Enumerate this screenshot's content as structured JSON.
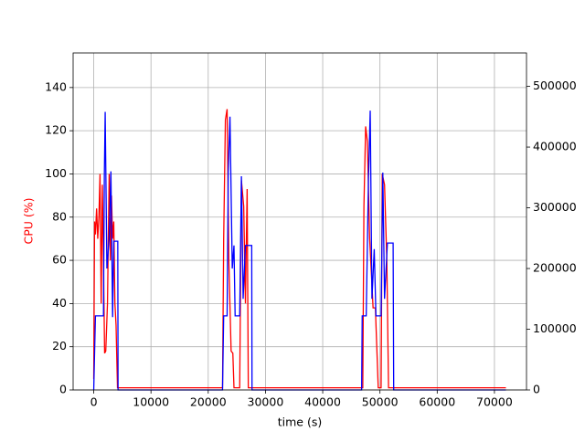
{
  "chart_data": {
    "type": "line",
    "xlabel": "time (s)",
    "ylabel": "CPU (%)",
    "ylabel_color": "red",
    "xlim": [
      -3600,
      75600
    ],
    "ylim": [
      0,
      156
    ],
    "y2lim": [
      0,
      555000
    ],
    "xticks": [
      0,
      10000,
      20000,
      30000,
      40000,
      50000,
      60000,
      70000
    ],
    "yticks": [
      0,
      20,
      40,
      60,
      80,
      100,
      120,
      140
    ],
    "y2ticks": [
      0,
      100000,
      200000,
      300000,
      400000,
      500000
    ],
    "grid": true,
    "series": [
      {
        "color": "red",
        "axis": "y",
        "x": [
          0,
          150,
          300,
          500,
          700,
          900,
          1100,
          1300,
          1500,
          1700,
          1900,
          2100,
          2400,
          2700,
          2900,
          3100,
          3300,
          3500,
          3700,
          3900,
          4050,
          4150,
          4250,
          22500,
          22700,
          23000,
          23300,
          23600,
          24000,
          24300,
          24500,
          25500,
          25800,
          26200,
          26500,
          26800,
          27000,
          47000,
          47200,
          47500,
          47800,
          48200,
          48800,
          49200,
          49700,
          50200,
          50400,
          50800,
          51200,
          51500,
          72000
        ],
        "values": [
          5,
          78,
          72,
          84,
          70,
          80,
          100,
          40,
          95,
          60,
          17,
          18,
          40,
          100,
          60,
          90,
          70,
          78,
          40,
          30,
          12,
          1,
          1,
          1,
          70,
          125,
          130,
          60,
          18,
          17,
          1,
          1,
          97,
          85,
          40,
          93,
          1,
          1,
          85,
          122,
          115,
          70,
          38,
          38,
          1,
          1,
          100,
          95,
          60,
          1,
          1
        ]
      },
      {
        "color": "blue",
        "axis": "y2",
        "x": [
          0,
          300,
          1700,
          1850,
          2000,
          2300,
          2700,
          3000,
          3300,
          3500,
          4200,
          4250,
          22500,
          22700,
          23300,
          23500,
          23800,
          24200,
          24500,
          24700,
          25500,
          25800,
          26100,
          26500,
          27600,
          27650,
          46800,
          46900,
          47600,
          48000,
          48300,
          48600,
          49000,
          49300,
          50200,
          50500,
          50800,
          51300,
          52300,
          52400,
          72000
        ],
        "values": [
          0,
          122000,
          122000,
          350000,
          458000,
          200000,
          250000,
          360000,
          120000,
          245000,
          245000,
          0,
          0,
          122000,
          122000,
          360000,
          450000,
          200000,
          238000,
          122000,
          122000,
          352000,
          150000,
          238000,
          238000,
          0,
          0,
          122000,
          122000,
          350000,
          460000,
          150000,
          232000,
          122000,
          122000,
          358000,
          150000,
          242000,
          242000,
          0,
          0
        ]
      }
    ]
  }
}
